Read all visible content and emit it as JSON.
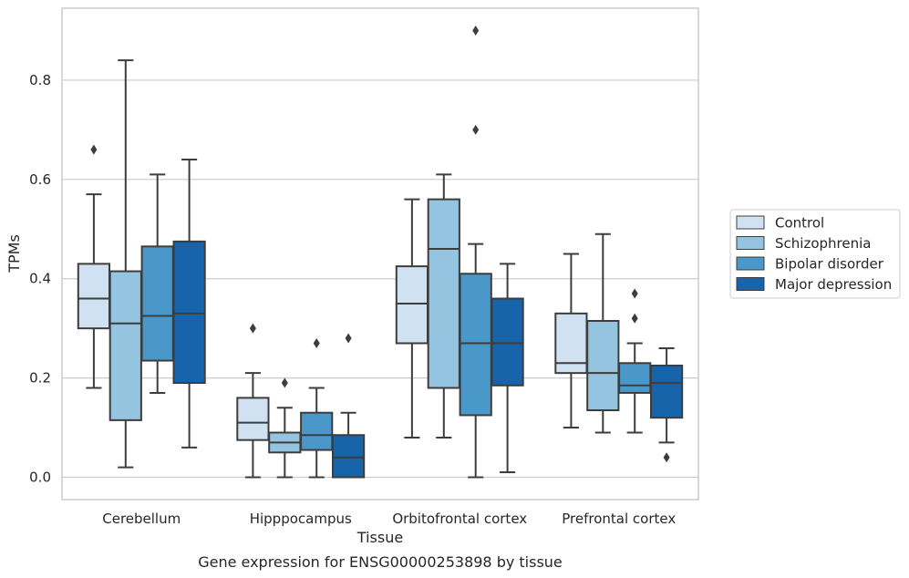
{
  "chart_data": {
    "type": "boxplot",
    "caption": "Gene expression for ENSG00000253898 by tissue",
    "xlabel": "Tissue",
    "ylabel": "TPMs",
    "ylim": [
      -0.045,
      0.945
    ],
    "yticks": [
      0.0,
      0.2,
      0.4,
      0.6,
      0.8
    ],
    "ytick_labels": [
      "0.0",
      "0.2",
      "0.4",
      "0.6",
      "0.8"
    ],
    "grid": "horizontal",
    "legend_position": "right",
    "categories": [
      "Cerebellum",
      "Hipppocampus",
      "Orbitofrontal cortex",
      "Prefrontal cortex"
    ],
    "series": [
      {
        "name": "Control",
        "color": "#d0e2f2",
        "boxes": [
          {
            "whislo": 0.18,
            "q1": 0.3,
            "med": 0.36,
            "q3": 0.43,
            "whishi": 0.57,
            "fliers": [
              0.66
            ]
          },
          {
            "whislo": 0.0,
            "q1": 0.075,
            "med": 0.11,
            "q3": 0.16,
            "whishi": 0.21,
            "fliers": [
              0.3
            ]
          },
          {
            "whislo": 0.08,
            "q1": 0.27,
            "med": 0.35,
            "q3": 0.425,
            "whishi": 0.56,
            "fliers": []
          },
          {
            "whislo": 0.1,
            "q1": 0.21,
            "med": 0.23,
            "q3": 0.33,
            "whishi": 0.45,
            "fliers": []
          }
        ]
      },
      {
        "name": "Schizophrenia",
        "color": "#94c4df",
        "boxes": [
          {
            "whislo": 0.02,
            "q1": 0.115,
            "med": 0.31,
            "q3": 0.415,
            "whishi": 0.84,
            "fliers": []
          },
          {
            "whislo": 0.0,
            "q1": 0.05,
            "med": 0.07,
            "q3": 0.09,
            "whishi": 0.14,
            "fliers": [
              0.19
            ]
          },
          {
            "whislo": 0.08,
            "q1": 0.18,
            "med": 0.46,
            "q3": 0.56,
            "whishi": 0.61,
            "fliers": []
          },
          {
            "whislo": 0.09,
            "q1": 0.135,
            "med": 0.21,
            "q3": 0.315,
            "whishi": 0.49,
            "fliers": []
          }
        ]
      },
      {
        "name": "Bipolar disorder",
        "color": "#4a98c9",
        "boxes": [
          {
            "whislo": 0.17,
            "q1": 0.235,
            "med": 0.325,
            "q3": 0.465,
            "whishi": 0.61,
            "fliers": []
          },
          {
            "whislo": 0.0,
            "q1": 0.055,
            "med": 0.085,
            "q3": 0.13,
            "whishi": 0.18,
            "fliers": [
              0.27
            ]
          },
          {
            "whislo": 0.0,
            "q1": 0.125,
            "med": 0.27,
            "q3": 0.41,
            "whishi": 0.47,
            "fliers": [
              0.9,
              0.7
            ]
          },
          {
            "whislo": 0.09,
            "q1": 0.17,
            "med": 0.185,
            "q3": 0.23,
            "whishi": 0.27,
            "fliers": [
              0.37,
              0.32
            ]
          }
        ]
      },
      {
        "name": "Major depression",
        "color": "#1764ab",
        "boxes": [
          {
            "whislo": 0.06,
            "q1": 0.19,
            "med": 0.33,
            "q3": 0.475,
            "whishi": 0.64,
            "fliers": []
          },
          {
            "whislo": 0.0,
            "q1": 0.0,
            "med": 0.04,
            "q3": 0.085,
            "whishi": 0.13,
            "fliers": [
              0.28
            ]
          },
          {
            "whislo": 0.01,
            "q1": 0.185,
            "med": 0.27,
            "q3": 0.36,
            "whishi": 0.43,
            "fliers": []
          },
          {
            "whislo": 0.07,
            "q1": 0.12,
            "med": 0.19,
            "q3": 0.225,
            "whishi": 0.26,
            "fliers": [
              0.04
            ]
          }
        ]
      }
    ]
  },
  "colors": {
    "frame": "#cccccc",
    "grid": "#cccccc",
    "box_edge": "#3d3d3d",
    "text": "#262626"
  }
}
